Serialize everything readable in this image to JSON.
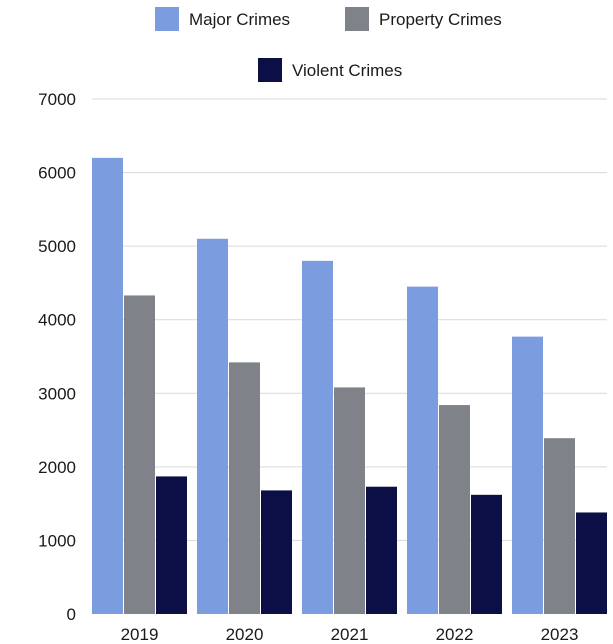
{
  "chart_data": {
    "type": "bar",
    "title": "",
    "xlabel": "",
    "ylabel": "",
    "categories": [
      "2019",
      "2020",
      "2021",
      "2022",
      "2023"
    ],
    "series": [
      {
        "name": "Major Crimes",
        "color": "#7b9ddf",
        "values": [
          6200,
          5100,
          4800,
          4450,
          3770
        ]
      },
      {
        "name": "Property Crimes",
        "color": "#7f8288",
        "values": [
          4330,
          3420,
          3080,
          2840,
          2390
        ]
      },
      {
        "name": "Violent Crimes",
        "color": "#0b0f45",
        "values": [
          1870,
          1680,
          1730,
          1620,
          1380
        ]
      }
    ],
    "ylim": [
      0,
      7000
    ],
    "yticks": [
      0,
      1000,
      2000,
      3000,
      4000,
      5000,
      6000,
      7000
    ],
    "grid": true,
    "legend_position": "top"
  }
}
